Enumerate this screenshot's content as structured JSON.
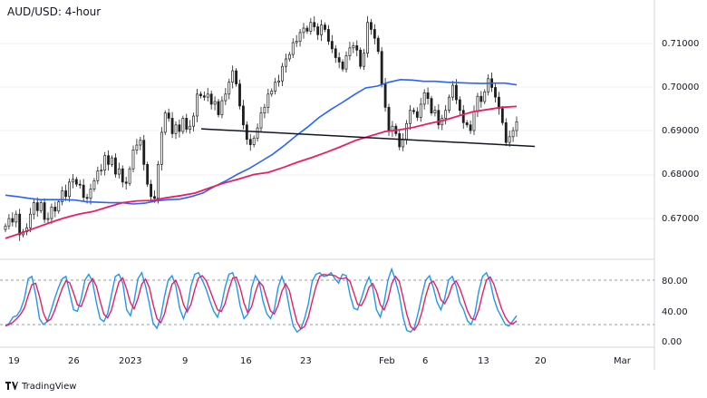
{
  "title": "AUD/USD: 4-hour",
  "brand": {
    "icon": "tradingview-logo-icon",
    "label": "TradingView"
  },
  "colors": {
    "up": "#26a69a",
    "down": "#ef5350",
    "candle": "#1e1e1e",
    "ma_fast": "#2962ff",
    "ma_slow": "#e91e63",
    "stoch_k": "#2196f3",
    "stoch_d": "#e91e63",
    "grid": "#e0e3eb"
  },
  "price_axis": {
    "labels": [
      "0.71000",
      "0.70000",
      "0.69000",
      "0.68000",
      "0.67000"
    ]
  },
  "stoch_axis": {
    "labels": [
      "80.00",
      "40.00",
      "0.00"
    ]
  },
  "time_axis": {
    "labels": [
      "19",
      "26",
      "2023",
      "9",
      "16",
      "23",
      "Feb",
      "6",
      "13",
      "20",
      "Mar"
    ]
  },
  "chart_data": {
    "type": "candlestick",
    "ylim": [
      0.6625,
      0.7155
    ],
    "price_close": [
      0.6685,
      0.6702,
      0.6694,
      0.6712,
      0.6665,
      0.6672,
      0.6681,
      0.6712,
      0.6738,
      0.672,
      0.6738,
      0.67,
      0.6702,
      0.6728,
      0.6719,
      0.674,
      0.6765,
      0.6752,
      0.6785,
      0.6791,
      0.678,
      0.6778,
      0.675,
      0.6748,
      0.6769,
      0.6788,
      0.681,
      0.6812,
      0.6845,
      0.6825,
      0.684,
      0.6803,
      0.6815,
      0.6785,
      0.6782,
      0.6815,
      0.6858,
      0.6869,
      0.688,
      0.6825,
      0.678,
      0.6752,
      0.6748,
      0.6825,
      0.6898,
      0.6942,
      0.693,
      0.6895,
      0.6915,
      0.69,
      0.693,
      0.6905,
      0.6912,
      0.6935,
      0.6985,
      0.6981,
      0.6978,
      0.6985,
      0.6962,
      0.6968,
      0.6938,
      0.697,
      0.6985,
      0.7012,
      0.7038,
      0.7008,
      0.6958,
      0.6915,
      0.6882,
      0.687,
      0.6885,
      0.6908,
      0.6942,
      0.6955,
      0.6985,
      0.6992,
      0.7012,
      0.7015,
      0.7048,
      0.7065,
      0.7075,
      0.7102,
      0.7105,
      0.7125,
      0.7135,
      0.7128,
      0.7148,
      0.7138,
      0.712,
      0.7142,
      0.7132,
      0.7105,
      0.7088,
      0.7068,
      0.7058,
      0.7042,
      0.7072,
      0.709,
      0.7095,
      0.7085,
      0.7048,
      0.7078,
      0.7148,
      0.7132,
      0.7112,
      0.7082,
      0.7008,
      0.6955,
      0.6902,
      0.6912,
      0.6895,
      0.6865,
      0.6882,
      0.6918,
      0.6948,
      0.6945,
      0.6932,
      0.6962,
      0.6988,
      0.6975,
      0.6942,
      0.6948,
      0.6915,
      0.693,
      0.6948,
      0.6978,
      0.7005,
      0.6972,
      0.6948,
      0.692,
      0.6915,
      0.6902,
      0.6945,
      0.698,
      0.6968,
      0.699,
      0.702,
      0.7,
      0.6978,
      0.6952,
      0.692,
      0.6875,
      0.6888,
      0.6902,
      0.6922
    ],
    "ma_fast": [
      0.6755,
      0.6752,
      0.6748,
      0.6745,
      0.6745,
      0.6745,
      0.6744,
      0.674,
      0.6739,
      0.6738,
      0.6738,
      0.6735,
      0.6737,
      0.6742,
      0.6745,
      0.6746,
      0.6752,
      0.676,
      0.6775,
      0.6788,
      0.6803,
      0.6816,
      0.6832,
      0.6848,
      0.6868,
      0.689,
      0.691,
      0.6932,
      0.695,
      0.6966,
      0.6983,
      0.6999,
      0.7003,
      0.7012,
      0.7018,
      0.7017,
      0.7014,
      0.7014,
      0.7012,
      0.7011,
      0.701,
      0.7009,
      0.701,
      0.701,
      0.7006
    ],
    "ma_slow": [
      0.6657,
      0.6668,
      0.668,
      0.6692,
      0.6703,
      0.6712,
      0.6718,
      0.6728,
      0.6738,
      0.6742,
      0.6743,
      0.6749,
      0.6754,
      0.676,
      0.6772,
      0.6783,
      0.6792,
      0.6802,
      0.6807,
      0.6818,
      0.683,
      0.6841,
      0.6853,
      0.6866,
      0.688,
      0.689,
      0.69,
      0.6904,
      0.691,
      0.6918,
      0.6925,
      0.6935,
      0.6945,
      0.695,
      0.6955,
      0.6957
    ],
    "neckline": {
      "start": 0.6906,
      "end": 0.6866
    },
    "stoch_ylim": [
      -5,
      100
    ],
    "stoch_levels": [
      80,
      20
    ],
    "stoch_k": [
      18,
      22,
      30,
      32,
      40,
      55,
      82,
      85,
      60,
      28,
      20,
      24,
      38,
      55,
      70,
      82,
      85,
      62,
      40,
      38,
      55,
      80,
      88,
      78,
      50,
      28,
      24,
      35,
      60,
      85,
      88,
      76,
      40,
      32,
      52,
      82,
      90,
      72,
      48,
      22,
      15,
      30,
      58,
      80,
      86,
      72,
      42,
      28,
      42,
      72,
      88,
      90,
      80,
      68,
      52,
      38,
      30,
      45,
      70,
      88,
      90,
      74,
      45,
      28,
      34,
      70,
      86,
      78,
      52,
      35,
      28,
      40,
      70,
      85,
      70,
      42,
      18,
      10,
      14,
      28,
      48,
      78,
      88,
      90,
      85,
      86,
      90,
      82,
      76,
      88,
      86,
      60,
      42,
      40,
      55,
      72,
      84,
      70,
      40,
      30,
      50,
      80,
      95,
      80,
      60,
      30,
      12,
      10,
      16,
      36,
      60,
      80,
      86,
      70,
      50,
      40,
      55,
      80,
      85,
      72,
      50,
      40,
      25,
      20,
      35,
      65,
      85,
      90,
      78,
      55,
      40,
      30,
      20,
      18,
      25,
      32
    ]
  }
}
